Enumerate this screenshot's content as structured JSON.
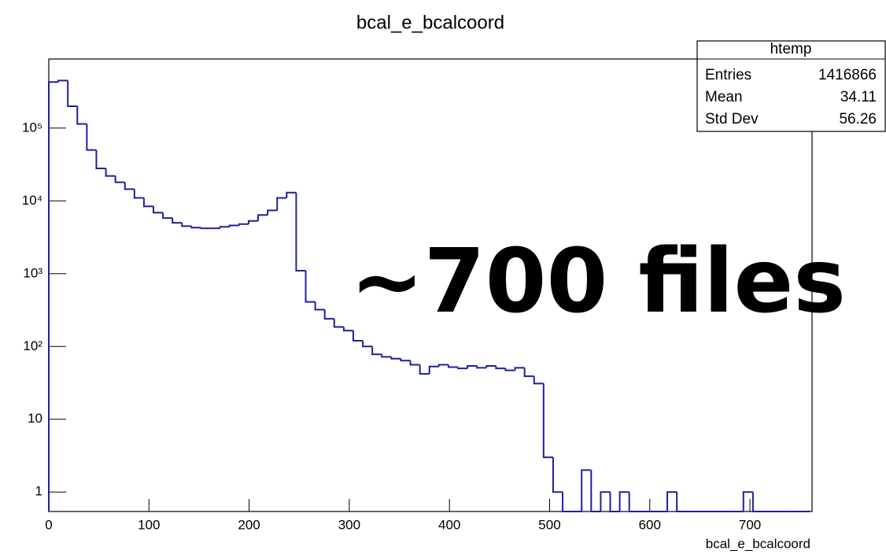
{
  "chart_data": {
    "type": "histogram",
    "title": "bcal_e_bcalcoord",
    "x_label": "bcal_e_bcalcoord",
    "bins": [
      0,
      9.5,
      19,
      28.5,
      38,
      47.5,
      57,
      66.5,
      76,
      85.5,
      95,
      104.5,
      114,
      123.5,
      133,
      142.5,
      152,
      161.5,
      171,
      180.5,
      190,
      199.5,
      209,
      218.5,
      228,
      237.5,
      247,
      256.5,
      266,
      275.5,
      285,
      294.5,
      304,
      313.5,
      323,
      332.5,
      342,
      351.5,
      361,
      370.5,
      380,
      389.5,
      399,
      408.5,
      418,
      427.5,
      437,
      446.5,
      456,
      465.5,
      475,
      484.5,
      494,
      503.5,
      513,
      522.5,
      532,
      541.5,
      551,
      560.5,
      570,
      579.5,
      589,
      598.5,
      608,
      617.5,
      627,
      636.5,
      646,
      655.5,
      665,
      674.5,
      684,
      693.5,
      703,
      712.5,
      722,
      731.5,
      741,
      750.5,
      760
    ],
    "values": [
      430000,
      450000,
      200000,
      114000,
      50000,
      28000,
      22000,
      18000,
      14500,
      11000,
      8400,
      6900,
      5800,
      5000,
      4500,
      4300,
      4200,
      4200,
      4400,
      4600,
      4800,
      5300,
      6400,
      7400,
      11000,
      13000,
      1100,
      410,
      320,
      240,
      185,
      165,
      120,
      100,
      78,
      72,
      68,
      64,
      56,
      42,
      53,
      56,
      52,
      50,
      54,
      51,
      54,
      50,
      47,
      51,
      39,
      31,
      3,
      1,
      0,
      0,
      2,
      0,
      1,
      0,
      1,
      0,
      0,
      0,
      0,
      1,
      0,
      0,
      0,
      0,
      0,
      0,
      0,
      1,
      0,
      0,
      0,
      0,
      0,
      0
    ],
    "color": "#1f1fa0",
    "log_y": true,
    "xlim": [
      0,
      762
    ],
    "xticks": [
      0,
      100,
      200,
      300,
      400,
      500,
      600,
      700
    ],
    "ylim": [
      0.54,
      890000
    ],
    "yticks": [
      1,
      10,
      {
        "value": 100,
        "label": "10²"
      },
      {
        "value": 1000,
        "label": "10³"
      },
      {
        "value": 10000,
        "label": "10⁴"
      },
      {
        "value": 100000,
        "label": "10⁵"
      }
    ],
    "stats": {
      "title": "htemp",
      "rows": [
        [
          "Entries",
          1416866
        ],
        [
          "Mean",
          34.11
        ],
        [
          "Std Dev",
          56.26
        ]
      ]
    },
    "annotation": "~700 files"
  }
}
